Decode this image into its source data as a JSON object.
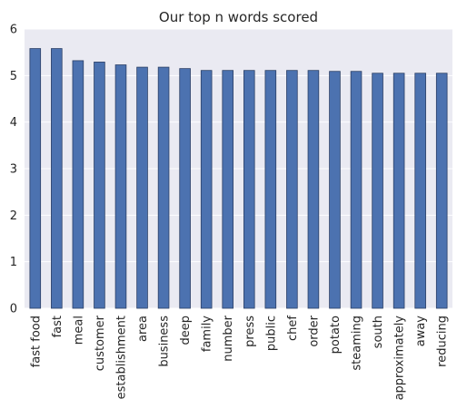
{
  "chart_data": {
    "type": "bar",
    "title": "Our top n words scored",
    "xlabel": "",
    "ylabel": "",
    "categories": [
      "fast food",
      "fast",
      "meal",
      "customer",
      "establishment",
      "area",
      "business",
      "deep",
      "family",
      "number",
      "press",
      "public",
      "chef",
      "order",
      "potato",
      "steaming",
      "south",
      "approximately",
      "away",
      "reducing"
    ],
    "values": [
      5.58,
      5.58,
      5.32,
      5.29,
      5.23,
      5.18,
      5.18,
      5.15,
      5.11,
      5.11,
      5.11,
      5.11,
      5.11,
      5.11,
      5.09,
      5.09,
      5.05,
      5.05,
      5.05,
      5.05
    ],
    "ylim": [
      0,
      6
    ],
    "yticks": [
      "0",
      "1",
      "2",
      "3",
      "4",
      "5",
      "6"
    ],
    "grid": true,
    "legend": "none",
    "colors": {
      "bar": "#4c72b0",
      "bar_edge": "#2b3f66",
      "plot_background": "#eaeaf2",
      "grid": "#ffffff",
      "text": "#262626"
    }
  }
}
